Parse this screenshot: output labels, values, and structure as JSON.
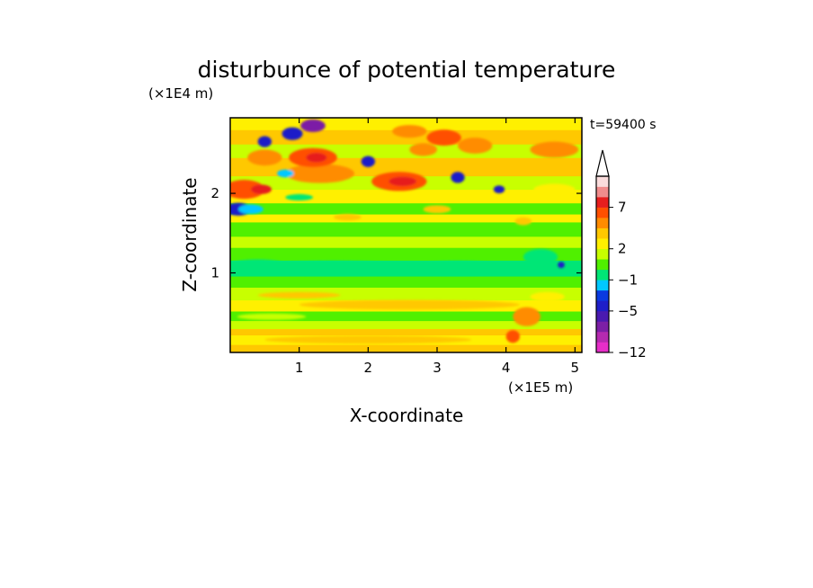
{
  "chart_data": {
    "type": "heatmap",
    "title": "disturbunce of potential temperature",
    "xlabel": "X-coordinate",
    "ylabel": "Z-coordinate",
    "x_unit": "(×1E5 m)",
    "y_unit": "(×1E4 m)",
    "time_label": "t=59400 s",
    "xlim": [
      0,
      5.1
    ],
    "ylim": [
      0,
      2.95
    ],
    "x_ticks": [
      1,
      2,
      3,
      4,
      5
    ],
    "y_ticks": [
      1,
      2
    ],
    "x_tick_labels": [
      "1",
      "2",
      "3",
      "4",
      "5"
    ],
    "y_tick_labels": [
      "1",
      "2"
    ],
    "colorbar": {
      "levels": [
        -12,
        -11,
        -9,
        -7,
        -5,
        -4,
        -3,
        -1,
        0,
        1,
        2,
        3,
        4,
        5,
        7,
        9,
        11
      ],
      "colors": [
        "#e62ec8",
        "#b52ab0",
        "#7c1fa6",
        "#4a1ab0",
        "#1f1fc8",
        "#0a3ae0",
        "#00c8ff",
        "#00e676",
        "#50f000",
        "#c8ff00",
        "#fff000",
        "#ffc800",
        "#ff8c00",
        "#ff5000",
        "#e61e1e",
        "#f08c8c",
        "#fadcdc"
      ],
      "tick_values": [
        -12,
        -5,
        -1,
        2,
        7
      ],
      "tick_labels": [
        "−12",
        "−5",
        "−1",
        "2",
        "7"
      ],
      "extend": "max"
    }
  }
}
